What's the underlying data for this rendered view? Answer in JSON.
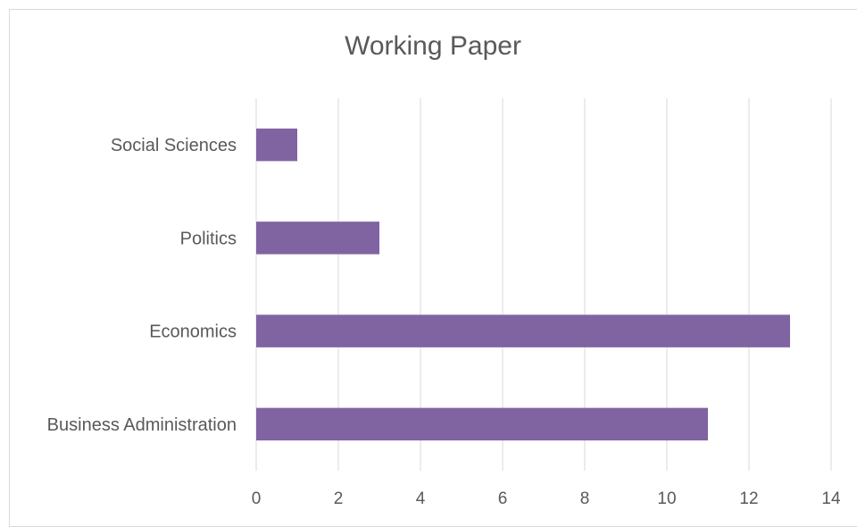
{
  "chart_data": {
    "type": "bar",
    "orientation": "horizontal",
    "title": "Working Paper",
    "xlabel": "",
    "ylabel": "",
    "categories": [
      "Business Administration",
      "Economics",
      "Politics",
      "Social Sciences"
    ],
    "values": [
      11,
      13,
      3,
      1
    ],
    "xlim": [
      0,
      14
    ],
    "xticks": [
      "0",
      "2",
      "4",
      "6",
      "8",
      "10",
      "12",
      "14"
    ],
    "grid": true,
    "legend": "none",
    "bar_color": "#8064A2",
    "gridline_color": "#d9d9d9"
  }
}
